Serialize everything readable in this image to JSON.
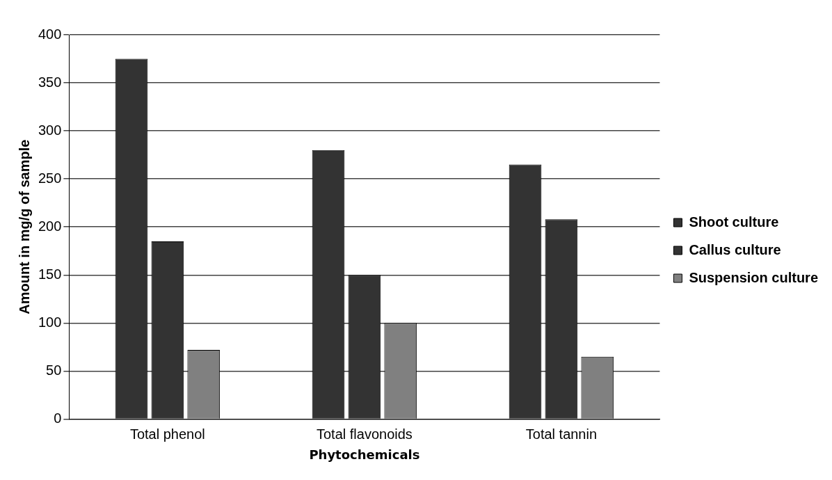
{
  "chart_data": {
    "type": "bar",
    "xlabel": "Phytochemicals",
    "ylabel": "Amount in mg/g of sample",
    "categories": [
      "Total phenol",
      "Total flavonoids",
      "Total tannin"
    ],
    "series": [
      {
        "name": "Shoot culture",
        "color": "#333333",
        "values": [
          375,
          280,
          265
        ]
      },
      {
        "name": "Callus culture",
        "color": "#333333",
        "values": [
          185,
          150,
          208
        ]
      },
      {
        "name": "Suspension culture",
        "color": "#808080",
        "values": [
          72,
          100,
          65
        ]
      }
    ],
    "ylim": [
      0,
      400
    ],
    "yticks": [
      0,
      50,
      100,
      150,
      200,
      250,
      300,
      350,
      400
    ],
    "grid": "y",
    "legend": "right"
  }
}
